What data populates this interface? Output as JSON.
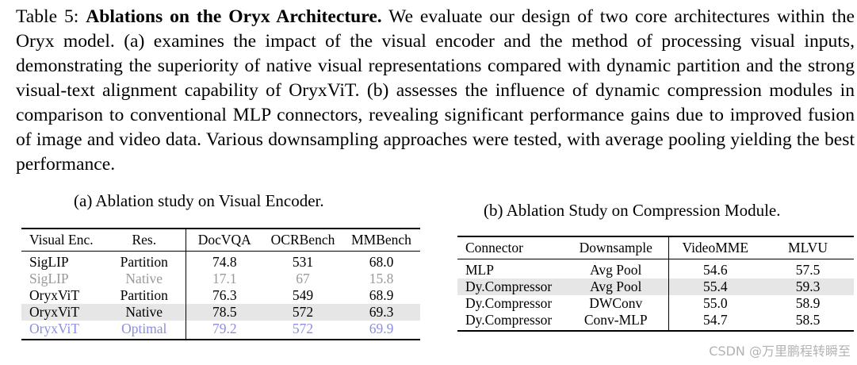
{
  "caption": {
    "label": "Table 5: ",
    "title": "Ablations on the Oryx Architecture.",
    "body": " We evaluate our design of two core architectures within the Oryx model. (a) examines the impact of the visual encoder and the method of processing visual inputs, demonstrating the superiority of native visual representations compared with dynamic partition and the strong visual-text alignment capability of OryxViT. (b) assesses the influence of dynamic compression modules in comparison to conventional MLP connectors, revealing significant performance gains due to improved fusion of image and video data. Various downsampling approaches were tested, with average pooling yielding the best performance."
  },
  "table_a": {
    "caption": "(a) Ablation study on Visual Encoder.",
    "headers": [
      "Visual Enc.",
      "Res.",
      "DocVQA",
      "OCRBench",
      "MMBench"
    ],
    "rows": [
      [
        "SigLIP",
        "Partition",
        "74.8",
        "531",
        "68.0"
      ],
      [
        "SigLIP",
        "Native",
        "17.1",
        "67",
        "15.8"
      ],
      [
        "OryxViT",
        "Partition",
        "76.3",
        "549",
        "68.9"
      ],
      [
        "OryxViT",
        "Native",
        "78.5",
        "572",
        "69.3"
      ],
      [
        "OryxViT",
        "Optimal",
        "79.2",
        "572",
        "69.9"
      ]
    ]
  },
  "table_b": {
    "caption": "(b) Ablation Study on Compression Module.",
    "headers": [
      "Connector",
      "Downsample",
      "VideoMME",
      "MLVU"
    ],
    "rows": [
      [
        "MLP",
        "Avg Pool",
        "54.6",
        "57.5"
      ],
      [
        "Dy.Compressor",
        "Avg Pool",
        "55.4",
        "59.3"
      ],
      [
        "Dy.Compressor",
        "DWConv",
        "55.0",
        "58.9"
      ],
      [
        "Dy.Compressor",
        "Conv-MLP",
        "54.7",
        "58.5"
      ]
    ]
  },
  "colors": {
    "dimmed_row": "#999999",
    "highlight_bg": "#e6e6e6",
    "optimal_row": "#8b8ee6",
    "watermark": "#b3b3b3"
  },
  "watermark": "CSDN @万里鹏程转瞬至"
}
